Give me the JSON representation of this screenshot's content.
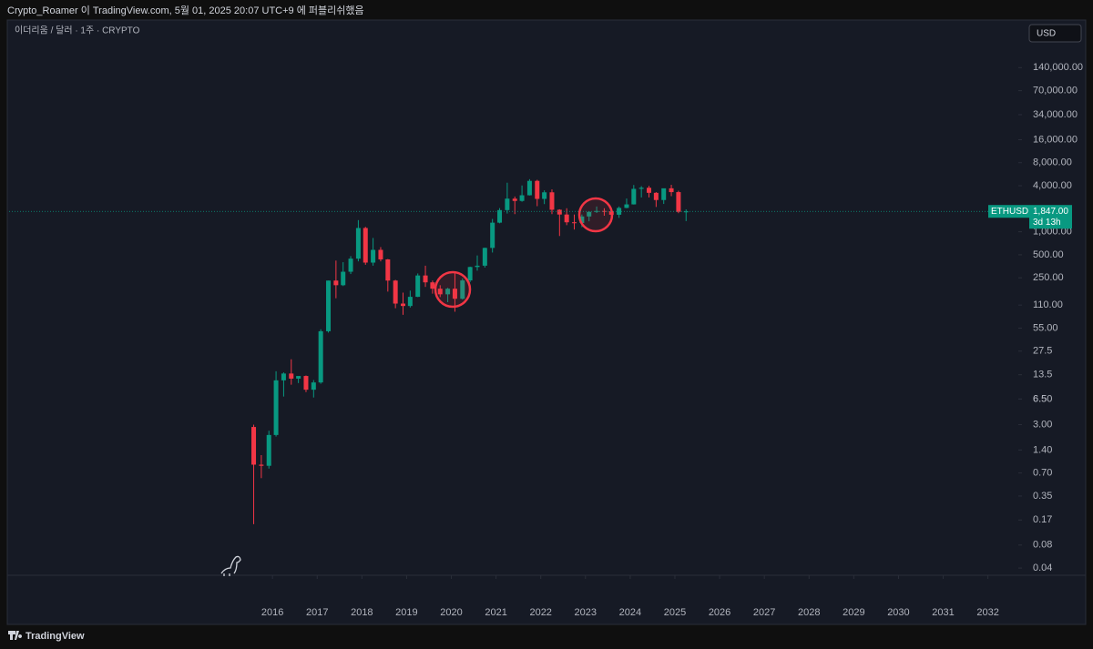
{
  "header": {
    "text": "Crypto_Roamer 이 TradingView.com, 5월 01, 2025 20:07 UTC+9 에 퍼블리쉬했음"
  },
  "footer": {
    "brand": "TradingView"
  },
  "chart_data": {
    "type": "candlestick",
    "title": "이더리움 / 달러 · 1주 · CRYPTO",
    "currency": "USD",
    "symbol": "ETHUSD",
    "last_price": {
      "value": 1847,
      "label": "1,847.00"
    },
    "countdown": "3d 13h",
    "log_scale": true,
    "up_color": "#089981",
    "down_color": "#f23645",
    "xlim": [
      2010.11,
      2032.68
    ],
    "ylim": [
      0.0322,
      556000
    ],
    "xticks": [
      2016,
      2017,
      2018,
      2019,
      2020,
      2021,
      2022,
      2023,
      2024,
      2025,
      2026,
      2027,
      2028,
      2029,
      2030,
      2031,
      2032
    ],
    "yticks": [
      0.04,
      0.08,
      0.17,
      0.35,
      {
        "value": 0.7,
        "label": "0.70"
      },
      {
        "value": 1.4,
        "label": "1.40"
      },
      {
        "value": 3,
        "label": "3.00"
      },
      6.5,
      {
        "value": 6.5,
        "label": "6.50"
      },
      13.5,
      27.5,
      {
        "value": 55,
        "label": "55.00"
      },
      {
        "value": 110,
        "label": "110.00"
      },
      {
        "value": 250,
        "label": "250.00"
      },
      {
        "value": 500,
        "label": "500.00"
      },
      {
        "value": 1000,
        "label": "1,000.00"
      },
      {
        "value": 4000,
        "label": "4,000.00"
      },
      {
        "value": 8000,
        "label": "8,000.00"
      },
      {
        "value": 16000,
        "label": "16,000.00"
      },
      {
        "value": 34000,
        "label": "34,000.00"
      },
      {
        "value": 70000,
        "label": "70,000.00"
      },
      {
        "value": 140000,
        "label": "140,000.00"
      }
    ],
    "x": [
      2015.58,
      2015.75,
      2015.92,
      2016.08,
      2016.25,
      2016.42,
      2016.58,
      2016.75,
      2016.92,
      2017.08,
      2017.25,
      2017.42,
      2017.58,
      2017.75,
      2017.92,
      2018.08,
      2018.25,
      2018.42,
      2018.58,
      2018.75,
      2018.92,
      2019.08,
      2019.25,
      2019.42,
      2019.58,
      2019.75,
      2019.92,
      2020.08,
      2020.25,
      2020.42,
      2020.58,
      2020.75,
      2020.92,
      2021.08,
      2021.25,
      2021.42,
      2021.58,
      2021.75,
      2021.92,
      2022.08,
      2022.25,
      2022.42,
      2022.58,
      2022.75,
      2022.92,
      2023.08,
      2023.25,
      2023.42,
      2023.58,
      2023.75,
      2023.92,
      2024.08,
      2024.25,
      2024.42,
      2024.58,
      2024.75,
      2024.92,
      2025.08,
      2025.25
    ],
    "open": [
      2.8,
      0.9,
      0.87,
      2.2,
      11.4,
      14,
      12,
      13,
      8.6,
      10.7,
      50,
      230,
      200,
      300,
      445,
      1120,
      395,
      580,
      435,
      230,
      115,
      107,
      141,
      268,
      218,
      180,
      152,
      180,
      133,
      231,
      346,
      360,
      615,
      1315,
      1920,
      2710,
      2530,
      3000,
      4630,
      2690,
      3280,
      1940,
      1680,
      1330,
      1300,
      1585,
      1820,
      1870,
      1860,
      1670,
      2050,
      2280,
      3640,
      3760,
      3230,
      2600,
      3700,
      3300,
      1820
    ],
    "high": [
      3,
      1.2,
      2.5,
      15,
      14.5,
      21.5,
      12.5,
      13.2,
      11.5,
      53,
      230,
      420,
      400,
      480,
      1420,
      1160,
      830,
      630,
      440,
      235,
      160,
      170,
      285,
      360,
      230,
      200,
      185,
      290,
      245,
      350,
      490,
      620,
      1470,
      2040,
      4380,
      2890,
      4030,
      4870,
      4780,
      3480,
      3580,
      1970,
      2030,
      1680,
      1680,
      1860,
      2140,
      2030,
      1870,
      2140,
      2720,
      4090,
      3950,
      3980,
      3300,
      3680,
      4110,
      3440,
      1960
    ],
    "low": [
      0.15,
      0.6,
      0.8,
      2.1,
      7,
      10,
      10.5,
      8,
      6.8,
      10.3,
      48,
      135,
      195,
      280,
      410,
      370,
      360,
      410,
      165,
      100,
      82,
      102,
      140,
      190,
      155,
      140,
      120,
      90,
      130,
      220,
      310,
      340,
      535,
      1290,
      1730,
      1700,
      2470,
      2980,
      2160,
      2300,
      1700,
      880,
      1220,
      1070,
      1150,
      1370,
      1760,
      1620,
      1530,
      1520,
      2030,
      2270,
      2810,
      2810,
      2110,
      2310,
      2920,
      1750,
      1380
    ],
    "close": [
      0.9,
      0.87,
      2.2,
      11.4,
      14,
      12,
      13,
      8.6,
      10.7,
      50,
      230,
      200,
      300,
      445,
      1120,
      395,
      580,
      435,
      230,
      115,
      107,
      141,
      268,
      218,
      180,
      152,
      180,
      133,
      231,
      346,
      360,
      615,
      1315,
      1920,
      2710,
      2530,
      3000,
      4630,
      2690,
      3280,
      1940,
      1680,
      1330,
      1300,
      1585,
      1820,
      1870,
      1860,
      1670,
      2050,
      2280,
      3640,
      3760,
      3230,
      2600,
      3700,
      3300,
      1820,
      1847
    ]
  }
}
